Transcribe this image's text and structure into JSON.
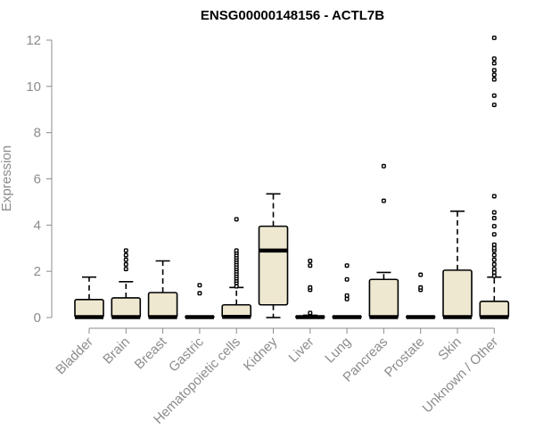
{
  "chart_data": {
    "type": "boxplot",
    "title": "ENSG00000148156 - ACTL7B",
    "xlabel": "",
    "ylabel": "Expression",
    "ylim": [
      0,
      12
    ],
    "yticks": [
      0,
      2,
      4,
      6,
      8,
      10,
      12
    ],
    "grid": false,
    "colors": {
      "box_fill": "#eee8d0",
      "stroke": "#000000",
      "axis": "#8c8c8c"
    },
    "categories": [
      "Bladder",
      "Brain",
      "Breast",
      "Gastric",
      "Hematopoietic cells",
      "Kidney",
      "Liver",
      "Lung",
      "Pancreas",
      "Prostate",
      "Skin",
      "Unknown / Other"
    ],
    "boxes": [
      {
        "category": "Bladder",
        "min": 0,
        "q1": 0,
        "median": 0.02,
        "q3": 0.78,
        "max": 1.75,
        "outliers": []
      },
      {
        "category": "Brain",
        "min": 0,
        "q1": 0,
        "median": 0.02,
        "q3": 0.85,
        "max": 1.55,
        "outliers": [
          2.1,
          2.3,
          2.5,
          2.7,
          2.9
        ]
      },
      {
        "category": "Breast",
        "min": 0,
        "q1": 0,
        "median": 0.02,
        "q3": 1.08,
        "max": 2.45,
        "outliers": []
      },
      {
        "category": "Gastric",
        "min": 0,
        "q1": 0,
        "median": 0.02,
        "q3": 0.05,
        "max": 0.05,
        "outliers": [
          1.05,
          1.4
        ]
      },
      {
        "category": "Hematopoietic cells",
        "min": 0,
        "q1": 0,
        "median": 0.03,
        "q3": 0.55,
        "max": 1.3,
        "outliers": [
          1.35,
          1.5,
          1.6,
          1.7,
          1.8,
          1.9,
          2.0,
          2.1,
          2.2,
          2.3,
          2.4,
          2.5,
          2.6,
          2.7,
          2.8,
          2.9,
          4.25
        ]
      },
      {
        "category": "Kidney",
        "min": 0,
        "q1": 0.55,
        "median": 2.9,
        "q3": 3.95,
        "max": 5.35,
        "outliers": []
      },
      {
        "category": "Liver",
        "min": 0,
        "q1": 0,
        "median": 0.02,
        "q3": 0.06,
        "max": 0.1,
        "outliers": [
          0.2,
          1.2,
          1.3,
          2.25,
          2.45
        ]
      },
      {
        "category": "Lung",
        "min": 0,
        "q1": 0,
        "median": 0.02,
        "q3": 0.05,
        "max": 0.05,
        "outliers": [
          0.8,
          0.95,
          1.65,
          2.25
        ]
      },
      {
        "category": "Pancreas",
        "min": 0,
        "q1": 0,
        "median": 0.02,
        "q3": 1.65,
        "max": 1.95,
        "outliers": [
          5.05,
          6.55
        ]
      },
      {
        "category": "Prostate",
        "min": 0,
        "q1": 0,
        "median": 0.02,
        "q3": 0.05,
        "max": 0.05,
        "outliers": [
          1.2,
          1.3,
          1.85
        ]
      },
      {
        "category": "Skin",
        "min": 0,
        "q1": 0,
        "median": 0.02,
        "q3": 2.05,
        "max": 4.6,
        "outliers": []
      },
      {
        "category": "Unknown / Other",
        "min": 0,
        "q1": 0,
        "median": 0.02,
        "q3": 0.7,
        "max": 1.75,
        "outliers": [
          1.8,
          1.95,
          2.1,
          2.3,
          2.5,
          2.7,
          2.9,
          3.0,
          3.15,
          3.6,
          3.95,
          4.3,
          4.55,
          5.25,
          9.2,
          9.6,
          10.3,
          10.5,
          10.7,
          11.0,
          11.2,
          12.1
        ]
      }
    ]
  }
}
